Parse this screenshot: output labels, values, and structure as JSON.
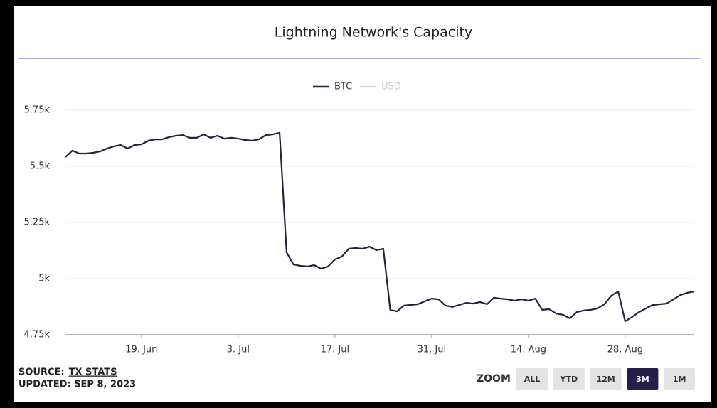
{
  "chart_data": {
    "type": "line",
    "title": "Lightning Network's Capacity",
    "x": [
      "2023-06-08",
      "2023-06-09",
      "2023-06-10",
      "2023-06-11",
      "2023-06-12",
      "2023-06-13",
      "2023-06-14",
      "2023-06-15",
      "2023-06-16",
      "2023-06-17",
      "2023-06-18",
      "2023-06-19",
      "2023-06-20",
      "2023-06-21",
      "2023-06-22",
      "2023-06-23",
      "2023-06-24",
      "2023-06-25",
      "2023-06-26",
      "2023-06-27",
      "2023-06-28",
      "2023-06-29",
      "2023-06-30",
      "2023-07-01",
      "2023-07-02",
      "2023-07-03",
      "2023-07-04",
      "2023-07-05",
      "2023-07-06",
      "2023-07-07",
      "2023-07-08",
      "2023-07-09",
      "2023-07-10",
      "2023-07-11",
      "2023-07-12",
      "2023-07-13",
      "2023-07-14",
      "2023-07-15",
      "2023-07-16",
      "2023-07-17",
      "2023-07-18",
      "2023-07-19",
      "2023-07-20",
      "2023-07-21",
      "2023-07-22",
      "2023-07-23",
      "2023-07-24",
      "2023-07-25",
      "2023-07-26",
      "2023-07-27",
      "2023-07-28",
      "2023-07-29",
      "2023-07-30",
      "2023-07-31",
      "2023-08-01",
      "2023-08-02",
      "2023-08-03",
      "2023-08-04",
      "2023-08-05",
      "2023-08-06",
      "2023-08-07",
      "2023-08-08",
      "2023-08-09",
      "2023-08-10",
      "2023-08-11",
      "2023-08-12",
      "2023-08-13",
      "2023-08-14",
      "2023-08-15",
      "2023-08-16",
      "2023-08-17",
      "2023-08-18",
      "2023-08-19",
      "2023-08-20",
      "2023-08-21",
      "2023-08-22",
      "2023-08-23",
      "2023-08-24",
      "2023-08-25",
      "2023-08-26",
      "2023-08-27",
      "2023-08-28",
      "2023-08-29",
      "2023-08-30",
      "2023-08-31",
      "2023-09-01",
      "2023-09-02",
      "2023-09-03",
      "2023-09-04",
      "2023-09-05",
      "2023-09-06",
      "2023-09-07"
    ],
    "series": [
      {
        "name": "BTC",
        "color": "#24223c",
        "values": [
          5541,
          5570,
          5557,
          5557,
          5560,
          5566,
          5579,
          5589,
          5595,
          5579,
          5595,
          5598,
          5614,
          5620,
          5620,
          5630,
          5636,
          5639,
          5627,
          5627,
          5642,
          5627,
          5636,
          5623,
          5627,
          5623,
          5617,
          5614,
          5620,
          5639,
          5642,
          5649,
          5117,
          5063,
          5057,
          5054,
          5060,
          5044,
          5054,
          5085,
          5098,
          5133,
          5136,
          5133,
          5142,
          5127,
          5133,
          4861,
          4854,
          4880,
          4883,
          4886,
          4899,
          4911,
          4908,
          4880,
          4874,
          4883,
          4892,
          4889,
          4896,
          4886,
          4915,
          4911,
          4908,
          4902,
          4908,
          4902,
          4911,
          4861,
          4864,
          4845,
          4839,
          4823,
          4851,
          4858,
          4861,
          4867,
          4886,
          4924,
          4943,
          4810,
          4829,
          4851,
          4867,
          4883,
          4886,
          4889,
          4908,
          4927,
          4937,
          4943
        ]
      }
    ],
    "inactive_series": [
      {
        "name": "USD",
        "color": "#dcdcdc"
      }
    ],
    "xlim": [
      "2023-06-08",
      "2023-09-07"
    ],
    "xticks": [
      {
        "value": "2023-06-19",
        "label": "19. Jun"
      },
      {
        "value": "2023-07-03",
        "label": "3. Jul"
      },
      {
        "value": "2023-07-17",
        "label": "17. Jul"
      },
      {
        "value": "2023-07-31",
        "label": "31. Jul"
      },
      {
        "value": "2023-08-14",
        "label": "14. Aug"
      },
      {
        "value": "2023-08-28",
        "label": "28. Aug"
      }
    ],
    "ylim": [
      4750,
      5750
    ],
    "yticks": [
      {
        "value": 4750,
        "label": "4.75k"
      },
      {
        "value": 5000,
        "label": "5k"
      },
      {
        "value": 5250,
        "label": "5.25k"
      },
      {
        "value": 5500,
        "label": "5.5k"
      },
      {
        "value": 5750,
        "label": "5.75k"
      }
    ],
    "grid": true,
    "legend": "top"
  },
  "footer": {
    "source_label": "SOURCE:",
    "source": "TX STATS",
    "updated": "UPDATED: SEP 8, 2023"
  },
  "zoom": {
    "label": "ZOOM",
    "buttons": [
      "ALL",
      "YTD",
      "12M",
      "3M",
      "1M"
    ],
    "active": 3
  }
}
